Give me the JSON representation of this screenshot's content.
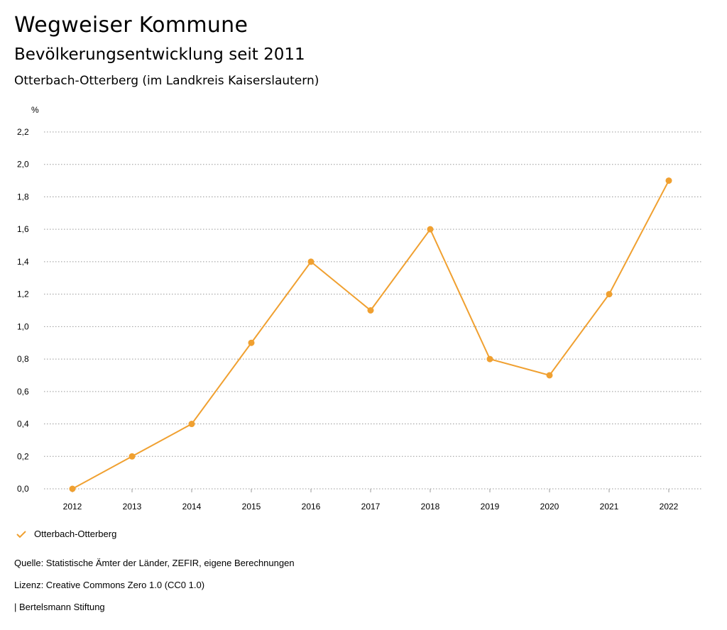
{
  "header": {
    "title": "Wegweiser Kommune",
    "subtitle": "Bevölkerungsentwicklung seit 2011",
    "region": "Otterbach-Otterberg (im Landkreis Kaiserslautern)"
  },
  "colors": {
    "series": "#f0a030",
    "grid": "#999999"
  },
  "chart_data": {
    "type": "line",
    "title": "Bevölkerungsentwicklung seit 2011",
    "ylabel": "%",
    "xlabel": "",
    "ylim": [
      0,
      2.2
    ],
    "yticks": [
      0,
      0.2,
      0.4,
      0.6,
      0.8,
      1.0,
      1.2,
      1.4,
      1.6,
      1.8,
      2.0,
      2.2
    ],
    "ytick_labels": [
      "0,0",
      "0,2",
      "0,4",
      "0,6",
      "0,8",
      "1,0",
      "1,2",
      "1,4",
      "1,6",
      "1,8",
      "2,0",
      "2,2"
    ],
    "categories": [
      "2012",
      "2013",
      "2014",
      "2015",
      "2016",
      "2017",
      "2018",
      "2019",
      "2020",
      "2021",
      "2022"
    ],
    "series": [
      {
        "name": "Otterbach-Otterberg",
        "values": [
          0.0,
          0.2,
          0.4,
          0.9,
          1.4,
          1.1,
          1.6,
          0.8,
          0.7,
          1.2,
          1.9
        ]
      }
    ],
    "grid": true,
    "legend": "bottom-left"
  },
  "footer": {
    "source": "Quelle: Statistische Ämter der Länder, ZEFIR, eigene Berechnungen",
    "license": "Lizenz: Creative Commons Zero 1.0 (CC0 1.0)",
    "publisher": "| Bertelsmann Stiftung"
  }
}
